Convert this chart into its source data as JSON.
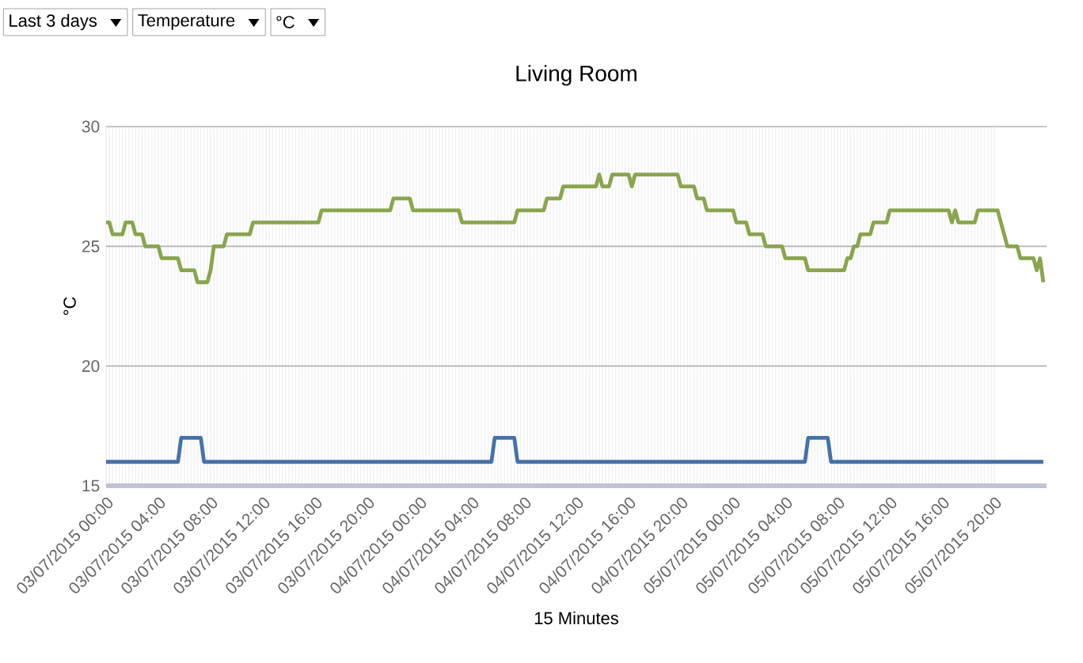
{
  "chart_data": {
    "type": "line",
    "title": "Living Room",
    "xlabel": "15 Minutes",
    "ylabel": "°C",
    "annotations": [
      "Last 3 days",
      "Temperature",
      "°C"
    ],
    "xlim": [
      "2015-07-03T00:00",
      "2015-07-06T00:00"
    ],
    "ylim": [
      15,
      30
    ],
    "yticks": [
      15,
      20,
      25,
      30
    ],
    "xticks": [
      {
        "value": "2015-07-03T00:00",
        "label": "03/07/2015 00:00"
      },
      {
        "value": "2015-07-03T04:00",
        "label": "03/07/2015 04:00"
      },
      {
        "value": "2015-07-03T08:00",
        "label": "03/07/2015 08:00"
      },
      {
        "value": "2015-07-03T12:00",
        "label": "03/07/2015 12:00"
      },
      {
        "value": "2015-07-03T16:00",
        "label": "03/07/2015 16:00"
      },
      {
        "value": "2015-07-03T20:00",
        "label": "03/07/2015 20:00"
      },
      {
        "value": "2015-07-04T00:00",
        "label": "04/07/2015 00:00"
      },
      {
        "value": "2015-07-04T04:00",
        "label": "04/07/2015 04:00"
      },
      {
        "value": "2015-07-04T08:00",
        "label": "04/07/2015 08:00"
      },
      {
        "value": "2015-07-04T12:00",
        "label": "04/07/2015 12:00"
      },
      {
        "value": "2015-07-04T16:00",
        "label": "04/07/2015 16:00"
      },
      {
        "value": "2015-07-04T20:00",
        "label": "04/07/2015 20:00"
      },
      {
        "value": "2015-07-05T00:00",
        "label": "05/07/2015 00:00"
      },
      {
        "value": "2015-07-05T04:00",
        "label": "05/07/2015 04:00"
      },
      {
        "value": "2015-07-05T08:00",
        "label": "05/07/2015 08:00"
      },
      {
        "value": "2015-07-05T12:00",
        "label": "05/07/2015 12:00"
      },
      {
        "value": "2015-07-05T16:00",
        "label": "05/07/2015 16:00"
      },
      {
        "value": "2015-07-05T20:00",
        "label": "05/07/2015 20:00"
      }
    ],
    "grid": true,
    "line_style": "solid",
    "series": [
      {
        "color": "#89a54e",
        "x": [
          "2015-07-03T00:00",
          "2015-07-03T00:15",
          "2015-07-03T00:30",
          "2015-07-03T01:15",
          "2015-07-03T01:30",
          "2015-07-03T02:00",
          "2015-07-03T02:15",
          "2015-07-03T02:45",
          "2015-07-03T03:00",
          "2015-07-03T04:00",
          "2015-07-03T04:15",
          "2015-07-03T05:30",
          "2015-07-03T05:45",
          "2015-07-03T06:45",
          "2015-07-03T07:00",
          "2015-07-03T07:45",
          "2015-07-03T08:00",
          "2015-07-03T08:15",
          "2015-07-03T09:00",
          "2015-07-03T09:15",
          "2015-07-03T11:00",
          "2015-07-03T11:15",
          "2015-07-03T16:15",
          "2015-07-03T16:30",
          "2015-07-03T21:45",
          "2015-07-03T22:00",
          "2015-07-03T23:15",
          "2015-07-03T23:30",
          "2015-07-04T03:00",
          "2015-07-04T03:15",
          "2015-07-04T07:15",
          "2015-07-04T07:30",
          "2015-07-04T09:30",
          "2015-07-04T09:45",
          "2015-07-04T10:45",
          "2015-07-04T11:00",
          "2015-07-04T13:30",
          "2015-07-04T13:45",
          "2015-07-04T14:00",
          "2015-07-04T14:30",
          "2015-07-04T14:45",
          "2015-07-04T16:00",
          "2015-07-04T16:15",
          "2015-07-04T16:30",
          "2015-07-04T19:45",
          "2015-07-04T20:00",
          "2015-07-04T21:00",
          "2015-07-04T21:15",
          "2015-07-04T21:45",
          "2015-07-04T22:00",
          "2015-07-05T00:00",
          "2015-07-05T00:15",
          "2015-07-05T01:00",
          "2015-07-05T01:15",
          "2015-07-05T02:15",
          "2015-07-05T02:30",
          "2015-07-05T03:45",
          "2015-07-05T04:00",
          "2015-07-05T05:30",
          "2015-07-05T05:45",
          "2015-07-05T08:30",
          "2015-07-05T08:45",
          "2015-07-05T09:00",
          "2015-07-05T09:15",
          "2015-07-05T09:30",
          "2015-07-05T09:45",
          "2015-07-05T10:30",
          "2015-07-05T10:45",
          "2015-07-05T11:45",
          "2015-07-05T12:00",
          "2015-07-05T16:30",
          "2015-07-05T16:45",
          "2015-07-05T17:00",
          "2015-07-05T17:15",
          "2015-07-05T18:30",
          "2015-07-05T18:45",
          "2015-07-05T20:15",
          "2015-07-05T20:30",
          "2015-07-05T20:45",
          "2015-07-05T21:00",
          "2015-07-05T21:45",
          "2015-07-05T22:00",
          "2015-07-05T23:00",
          "2015-07-05T23:15",
          "2015-07-05T23:30",
          "2015-07-05T23:45"
        ],
        "values": [
          26,
          26,
          25.5,
          25.5,
          26,
          26,
          25.5,
          25.5,
          25,
          25,
          24.5,
          24.5,
          24,
          24,
          23.5,
          23.5,
          24,
          25,
          25,
          25.5,
          25.5,
          26,
          26,
          26.5,
          26.5,
          27,
          27,
          26.5,
          26.5,
          26,
          26,
          26.5,
          26.5,
          27,
          27,
          27.5,
          27.5,
          28,
          27.5,
          27.5,
          28,
          28,
          27.5,
          28,
          28,
          27.5,
          27.5,
          27,
          27,
          26.5,
          26.5,
          26,
          26,
          25.5,
          25.5,
          25,
          25,
          24.5,
          24.5,
          24,
          24,
          24.5,
          24.5,
          25,
          25,
          25.5,
          25.5,
          26,
          26,
          26.5,
          26.5,
          26,
          26.5,
          26,
          26,
          26.5,
          26.5,
          26,
          25.5,
          25,
          25,
          24.5,
          24.5,
          24,
          24.5,
          23.5
        ]
      },
      {
        "color": "#4572a7",
        "x": [
          "2015-07-03T00:00",
          "2015-07-03T05:30",
          "2015-07-03T05:45",
          "2015-07-03T07:15",
          "2015-07-03T07:30",
          "2015-07-04T05:30",
          "2015-07-04T05:45",
          "2015-07-04T07:15",
          "2015-07-04T07:30",
          "2015-07-05T05:30",
          "2015-07-05T05:45",
          "2015-07-05T07:15",
          "2015-07-05T07:30",
          "2015-07-05T23:45"
        ],
        "values": [
          16,
          16,
          17,
          17,
          16,
          16,
          17,
          17,
          16,
          16,
          17,
          17,
          16,
          16
        ]
      }
    ]
  }
}
